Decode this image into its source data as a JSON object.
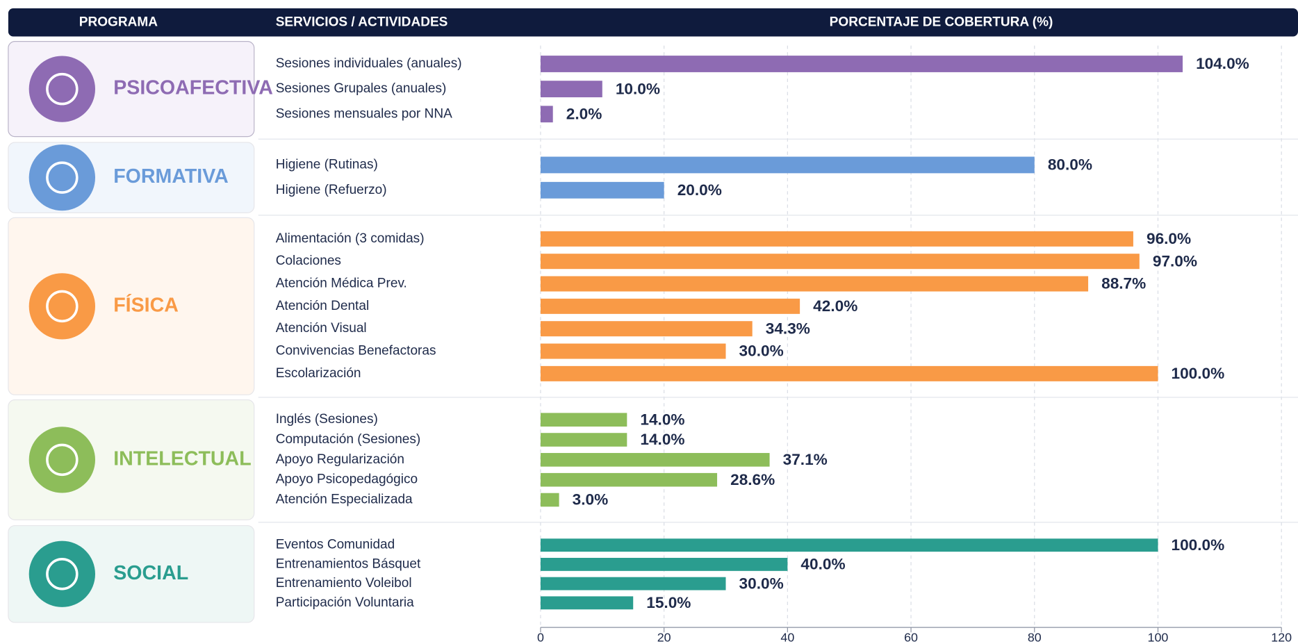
{
  "chart_data": {
    "type": "bar",
    "headers": [
      "PROGRAMA",
      "SERVICIOS / ACTIVIDADES",
      "PORCENTAJE DE COBERTURA (%)"
    ],
    "xlim": [
      0,
      120
    ],
    "xticks": [
      0,
      20,
      40,
      60,
      80,
      100,
      120
    ],
    "grid": true,
    "groups": [
      {
        "name": "PSICOAFECTIVA",
        "color": "#8e6bb3",
        "categories": [
          "Sesiones individuales (anuales)",
          "Sesiones Grupales (anuales)",
          "Sesiones mensuales por NNA"
        ],
        "values": [
          104,
          10,
          2
        ],
        "value_labels": [
          "104.0%",
          "10.0%",
          "2.0%"
        ]
      },
      {
        "name": "FORMATIVA",
        "color": "#6a9bd9",
        "categories": [
          "Higiene (Rutinas)",
          "Higiene (Refuerzo)"
        ],
        "values": [
          80,
          20
        ],
        "value_labels": [
          "80.0%",
          "20.0%"
        ]
      },
      {
        "name": "FÍSICA",
        "color": "#f99a46",
        "categories": [
          "Alimentación (3 comidas)",
          "Colaciones",
          "Atención Médica Prev.",
          "Atención Dental",
          "Atención Visual",
          "Convivencias Benefactoras",
          "Escolarización"
        ],
        "values": [
          96,
          97,
          88.7,
          42,
          34.3,
          30,
          100
        ],
        "value_labels": [
          "96.0%",
          "97.0%",
          "88.7%",
          "42.0%",
          "34.3%",
          "30.0%",
          "100.0%"
        ]
      },
      {
        "name": "INTELECTUAL",
        "color": "#8dbd5a",
        "categories": [
          "Inglés (Sesiones)",
          "Computación (Sesiones)",
          "Apoyo Regularización",
          "Apoyo Psicopedagógico",
          "Atención Especializada"
        ],
        "values": [
          14,
          14,
          37.1,
          28.6,
          3
        ],
        "value_labels": [
          "14.0%",
          "14.0%",
          "37.1%",
          "28.6%",
          "3.0%"
        ]
      },
      {
        "name": "SOCIAL",
        "color": "#2a9d8f",
        "categories": [
          "Eventos Comunidad",
          "Entrenamientos Básquet",
          "Entrenamiento Voleibol",
          "Participación Voluntaria"
        ],
        "values": [
          100,
          40,
          30,
          15
        ],
        "value_labels": [
          "100.0%",
          "40.0%",
          "30.0%",
          "15.0%"
        ]
      }
    ]
  }
}
